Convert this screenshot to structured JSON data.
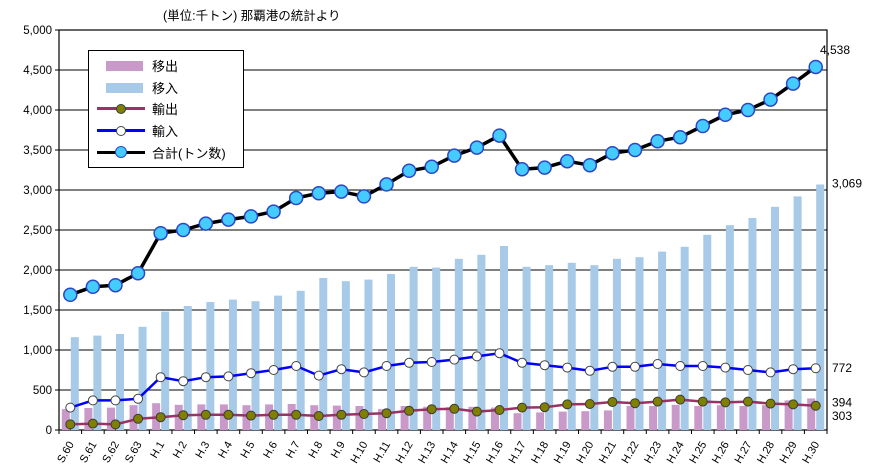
{
  "title": "(単位:千トン) 那覇港の統計より",
  "legend": {
    "items": [
      "移出",
      "移入",
      "輸出",
      "輸入",
      "合計(トン数)"
    ]
  },
  "axes": {
    "y_ticks": [
      0,
      500,
      1000,
      1500,
      2000,
      2500,
      3000,
      3500,
      4000,
      4500,
      5000
    ]
  },
  "annotations": [
    {
      "series_index": 4,
      "text": "4,538"
    },
    {
      "series_index": 1,
      "text": "3,069"
    },
    {
      "series_index": 3,
      "text": "772"
    },
    {
      "series_index": 0,
      "text": "394"
    },
    {
      "series_index": 2,
      "text": "303"
    }
  ],
  "chart_data": {
    "type": "bar",
    "subtype": "combo-bar-line",
    "title": "(単位:千トン) 那覇港の統計より",
    "xlabel": "",
    "ylabel": "",
    "ylim": [
      0,
      5000
    ],
    "ytick_step": 500,
    "grid": true,
    "legend_position": "top-left-inside",
    "categories": [
      "S.60",
      "S.61",
      "S.62",
      "S.63",
      "H.1",
      "H.2",
      "H.3",
      "H.4",
      "H.5",
      "H.6",
      "H.7",
      "H.8",
      "H.9",
      "H.10",
      "H.11",
      "H.12",
      "H.13",
      "H.14",
      "H.15",
      "H.16",
      "H.17",
      "H.18",
      "H.19",
      "H.20",
      "H.21",
      "H.22",
      "H.23",
      "H.24",
      "H.25",
      "H.26",
      "H.27",
      "H.28",
      "H.29",
      "H.30"
    ],
    "series": [
      {
        "name": "移出",
        "type": "bar",
        "color": "#C999C9",
        "values": [
          260,
          275,
          280,
          310,
          335,
          315,
          320,
          320,
          310,
          320,
          325,
          310,
          305,
          300,
          260,
          300,
          290,
          285,
          290,
          280,
          210,
          220,
          230,
          235,
          245,
          300,
          300,
          315,
          300,
          310,
          300,
          310,
          370,
          394
        ]
      },
      {
        "name": "移入",
        "type": "bar",
        "color": "#A6CAE8",
        "values": [
          1160,
          1180,
          1200,
          1290,
          1480,
          1550,
          1600,
          1630,
          1610,
          1680,
          1740,
          1900,
          1860,
          1880,
          1950,
          2040,
          2030,
          2140,
          2190,
          2300,
          2040,
          2060,
          2090,
          2060,
          2140,
          2160,
          2230,
          2290,
          2440,
          2560,
          2650,
          2790,
          2920,
          3069
        ]
      },
      {
        "name": "輸出",
        "type": "line",
        "color": "#993366",
        "marker_fill": "#808000",
        "marker_stroke": "#3a3a3a",
        "values": [
          70,
          80,
          70,
          140,
          160,
          185,
          190,
          190,
          180,
          190,
          190,
          175,
          190,
          200,
          210,
          240,
          260,
          265,
          230,
          250,
          280,
          285,
          320,
          325,
          350,
          335,
          355,
          380,
          355,
          345,
          355,
          330,
          320,
          303
        ]
      },
      {
        "name": "輸入",
        "type": "line",
        "color": "#0000FF",
        "marker_fill": "#FFFFFF",
        "marker_stroke": "#444444",
        "values": [
          280,
          370,
          370,
          390,
          660,
          610,
          660,
          670,
          710,
          750,
          800,
          680,
          760,
          720,
          800,
          840,
          850,
          880,
          920,
          960,
          840,
          810,
          780,
          740,
          790,
          790,
          825,
          800,
          800,
          780,
          750,
          720,
          760,
          772
        ]
      },
      {
        "name": "合計(トン数)",
        "type": "line",
        "color": "#000000",
        "marker_fill": "#44CCFF",
        "marker_stroke": "#2B46C8",
        "values": [
          1690,
          1790,
          1810,
          1960,
          2460,
          2500,
          2580,
          2630,
          2670,
          2730,
          2900,
          2960,
          2980,
          2920,
          3070,
          3240,
          3290,
          3430,
          3530,
          3680,
          3260,
          3280,
          3360,
          3310,
          3460,
          3500,
          3610,
          3660,
          3800,
          3940,
          4000,
          4130,
          4330,
          4538
        ]
      }
    ]
  }
}
